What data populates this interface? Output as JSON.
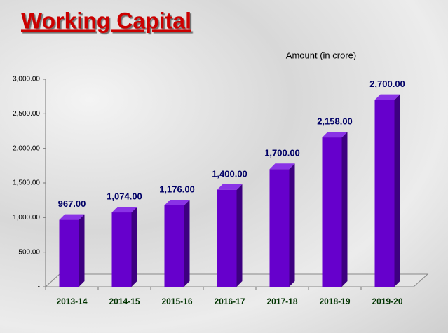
{
  "chart_data": {
    "type": "bar",
    "title": "Working Capital",
    "subtitle": "Amount (in crore)",
    "categories": [
      "2013-14",
      "2014-15",
      "2015-16",
      "2016-17",
      "2017-18",
      "2018-19",
      "2019-20"
    ],
    "values": [
      967,
      1074,
      1176,
      1400,
      1700,
      2158,
      2700
    ],
    "value_labels": [
      "967.00",
      "1,074.00",
      "1,176.00",
      "1,400.00",
      "1,700.00",
      "2,158.00",
      "2,700.00"
    ],
    "color": "#6600cc",
    "ylim": [
      0,
      3000
    ],
    "yticks": [
      {
        "value": 0,
        "label": "-"
      },
      {
        "value": 500,
        "label": "500.00"
      },
      {
        "value": 1000,
        "label": "1,000.00"
      },
      {
        "value": 1500,
        "label": "1,500.00"
      },
      {
        "value": 2000,
        "label": "2,000.00"
      },
      {
        "value": 2500,
        "label": "2,500.00"
      },
      {
        "value": 3000,
        "label": "3,000.00"
      }
    ]
  }
}
